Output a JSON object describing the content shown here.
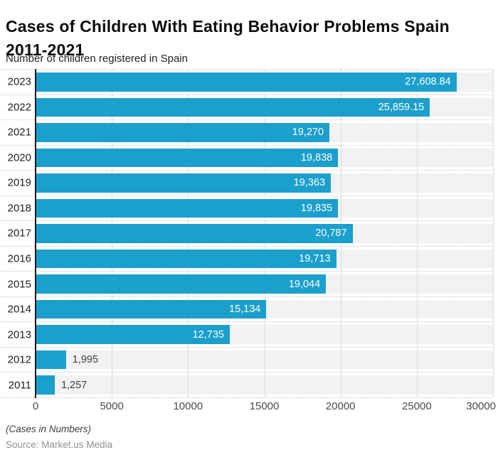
{
  "header": {
    "title": "Cases of Children With Eating Behavior Problems Spain 2011-2021",
    "subtitle": "Number of children registered in Spain"
  },
  "footer": {
    "note": "(Cases in Numbers)",
    "source": "Source: Market.us Media"
  },
  "colors": {
    "bar": "#1b9fcd",
    "band": "#f2f2f2",
    "gridline": "#dcdcdc",
    "axis": "#1a1a1a",
    "label_inside": "#ffffff",
    "label_outside": "#3f3f3f"
  },
  "chart_data": {
    "type": "bar",
    "orientation": "horizontal",
    "title": "Cases of Children With Eating Behavior Problems Spain 2011-2021",
    "subtitle": "Number of children registered in Spain",
    "categories": [
      "2023",
      "2022",
      "2021",
      "2020",
      "2019",
      "2018",
      "2017",
      "2016",
      "2015",
      "2014",
      "2013",
      "2012",
      "2011"
    ],
    "values": [
      27608.84,
      25859.15,
      19270,
      19838,
      19363,
      19835,
      20787,
      19713,
      19044,
      15134,
      12735,
      1995,
      1257
    ],
    "value_labels": [
      "27,608.84",
      "25,859.15",
      "19,270",
      "19,838",
      "19,363",
      "19,835",
      "20,787",
      "19,713",
      "19,044",
      "15,134",
      "12,735",
      "1,995",
      "1,257"
    ],
    "xlim": [
      0,
      30000
    ],
    "x_ticks": [
      0,
      5000,
      10000,
      15000,
      20000,
      25000,
      30000
    ],
    "x_tick_labels": [
      "0",
      "5000",
      "10000",
      "15000",
      "20000",
      "25000",
      "30000"
    ],
    "grid": true,
    "legend": false,
    "units_note": "(Cases in Numbers)"
  }
}
